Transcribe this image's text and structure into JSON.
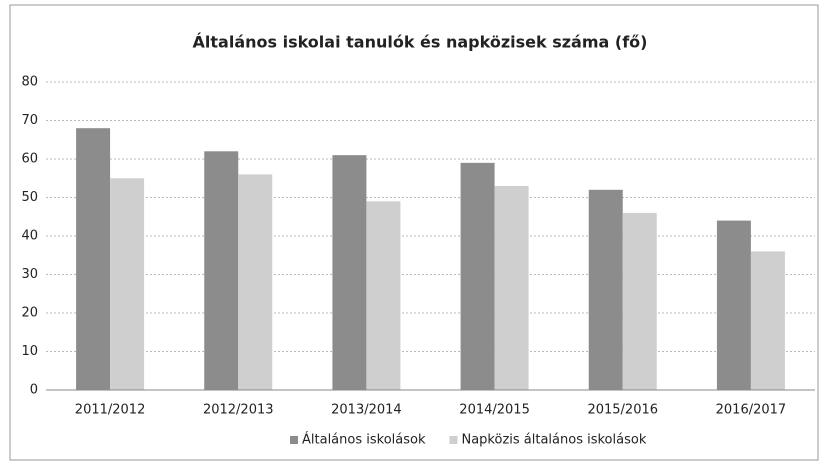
{
  "chart_data": {
    "type": "bar",
    "title": "Általános iskolai tanulók és napközisek száma (fő)",
    "categories": [
      "2011/2012",
      "2012/2013",
      "2013/2014",
      "2014/2015",
      "2015/2016",
      "2016/2017"
    ],
    "series": [
      {
        "name": "Általános iskolások",
        "color": "#8c8c8c",
        "values": [
          68,
          62,
          61,
          59,
          52,
          44
        ]
      },
      {
        "name": "Napközis általános iskolások",
        "color": "#cfcfcf",
        "values": [
          55,
          56,
          49,
          53,
          46,
          36
        ]
      }
    ],
    "ylim": [
      0,
      80
    ],
    "yticks": [
      0,
      10,
      20,
      30,
      40,
      50,
      60,
      70,
      80
    ],
    "grid": true,
    "legend": "bottom"
  }
}
